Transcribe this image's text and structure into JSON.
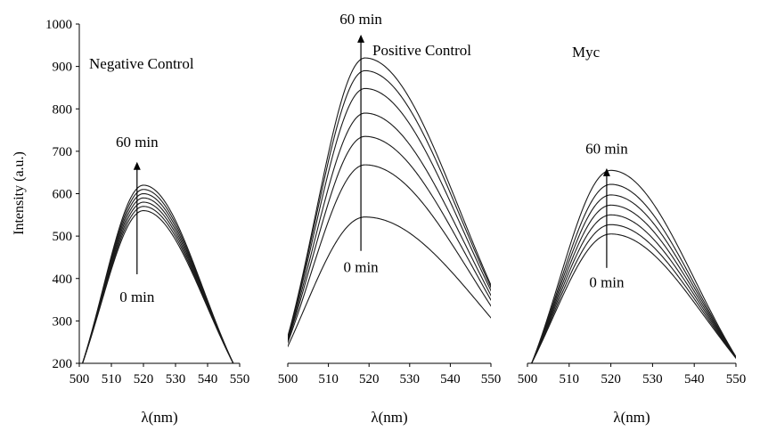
{
  "figure": {
    "ylabel": "Intensity (a.u.)",
    "yticks": [
      200,
      300,
      400,
      500,
      600,
      700,
      800,
      900,
      1000
    ],
    "xticks": [
      500,
      510,
      520,
      530,
      540,
      550
    ]
  },
  "chart_data": [
    {
      "type": "line",
      "title": "Negative Control",
      "xlabel": "λ(nm)",
      "ylabel": "Intensity (a.u.)",
      "xlim": [
        500,
        550
      ],
      "ylim": [
        200,
        1000
      ],
      "grid": false,
      "peak_wavelength": 520,
      "left_base": 501,
      "right_base": 548,
      "peaks": [
        560,
        570,
        580,
        590,
        600,
        610,
        620
      ],
      "annotations": {
        "top": "60 min",
        "bottom": "0 min"
      },
      "arrow": {
        "x": 518,
        "from_y": 410,
        "to_y": 675
      },
      "label_positions": {
        "top": [
          518,
          710
        ],
        "bottom": [
          518,
          345
        ]
      }
    },
    {
      "type": "line",
      "title": "Positive Control",
      "xlabel": "λ(nm)",
      "ylabel": "",
      "xlim": [
        500,
        550
      ],
      "ylim": [
        200,
        1000
      ],
      "grid": false,
      "peak_wavelength": 519,
      "left_base": 498,
      "right_base": 560,
      "peaks": [
        545,
        668,
        735,
        790,
        848,
        890,
        920
      ],
      "annotations": {
        "top": "60 min",
        "bottom": "0 min"
      },
      "arrow": {
        "x": 518,
        "from_y": 465,
        "to_y": 975
      },
      "label_positions": {
        "top": [
          518,
          1000
        ],
        "bottom": [
          518,
          415
        ]
      }
    },
    {
      "type": "line",
      "title": "Myc",
      "xlabel": "λ(nm)",
      "ylabel": "",
      "xlim": [
        500,
        550
      ],
      "ylim": [
        200,
        1000
      ],
      "grid": false,
      "peak_wavelength": 520,
      "left_base": 501,
      "right_base": 551,
      "peaks": [
        505,
        527,
        550,
        573,
        597,
        622,
        655
      ],
      "annotations": {
        "top": "60 min",
        "bottom": "0 min"
      },
      "arrow": {
        "x": 519,
        "from_y": 425,
        "to_y": 660
      },
      "label_positions": {
        "top": [
          519,
          695
        ],
        "bottom": [
          519,
          380
        ]
      }
    }
  ]
}
